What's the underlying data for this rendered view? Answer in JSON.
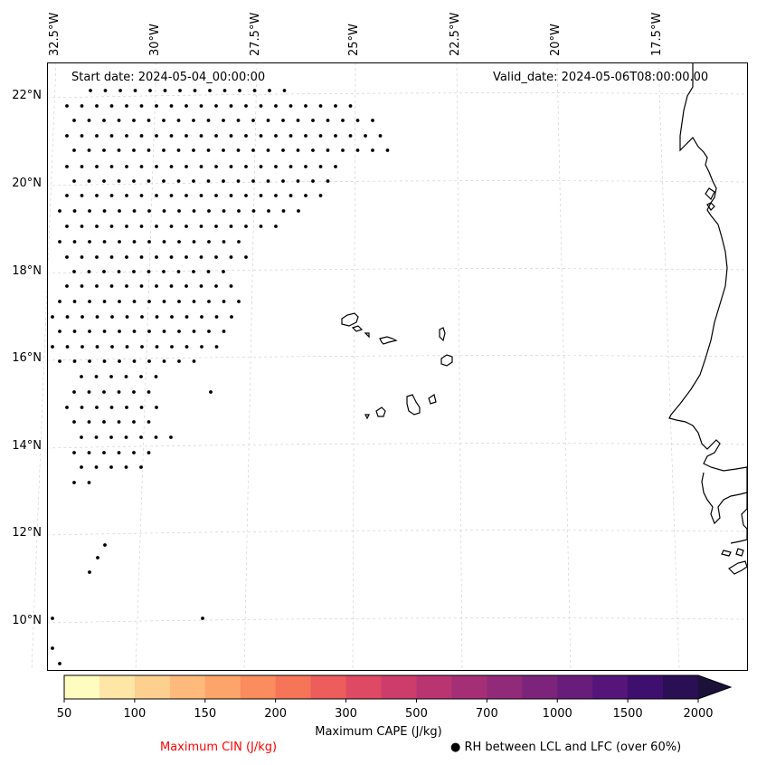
{
  "map": {
    "start_date": "Start date: 2024-05-04_00:00:00",
    "valid_date": "Valid_date: 2024-05-06T08:00:00.00",
    "lon_labels": [
      "32.5°W",
      "30°W",
      "27.5°W",
      "25°W",
      "22.5°W",
      "20°W",
      "17.5°W"
    ],
    "lat_labels": [
      "22°N",
      "20°N",
      "18°N",
      "16°N",
      "14°N",
      "12°N",
      "10°N"
    ],
    "extent": {
      "lon_min": -32.9,
      "lon_max": -16.7,
      "lat_min": 8.9,
      "lat_max": 22.8
    },
    "features": [
      "coastline-west-africa",
      "cape-verde-islands"
    ],
    "stipple_marker": "black-dot"
  },
  "colorbar": {
    "title": "Maximum CAPE (J/kg)",
    "tick_labels": [
      "50",
      "100",
      "150",
      "200",
      "300",
      "500",
      "700",
      "1000",
      "1500",
      "2000"
    ],
    "levels": [
      50,
      75,
      100,
      125,
      150,
      175,
      200,
      250,
      300,
      400,
      500,
      600,
      700,
      850,
      1000,
      1250,
      1500,
      1750,
      2000
    ],
    "colors": [
      "#fefcbf",
      "#fde6a6",
      "#fdd08f",
      "#fdba7a",
      "#fca46a",
      "#fb8c5e",
      "#f67559",
      "#ec5d5b",
      "#de4a63",
      "#cc3d6b",
      "#b93571",
      "#a52f76",
      "#902a79",
      "#7c247b",
      "#681d7b",
      "#551579",
      "#3e0f6e",
      "#2a0f54",
      "#1c1138"
    ],
    "extend": "max"
  },
  "legend": {
    "cin_label": "Maximum CIN (J/kg)",
    "cin_color": "#ff0000",
    "rh_label": "● RH between LCL and LFC (over 60%)"
  }
}
